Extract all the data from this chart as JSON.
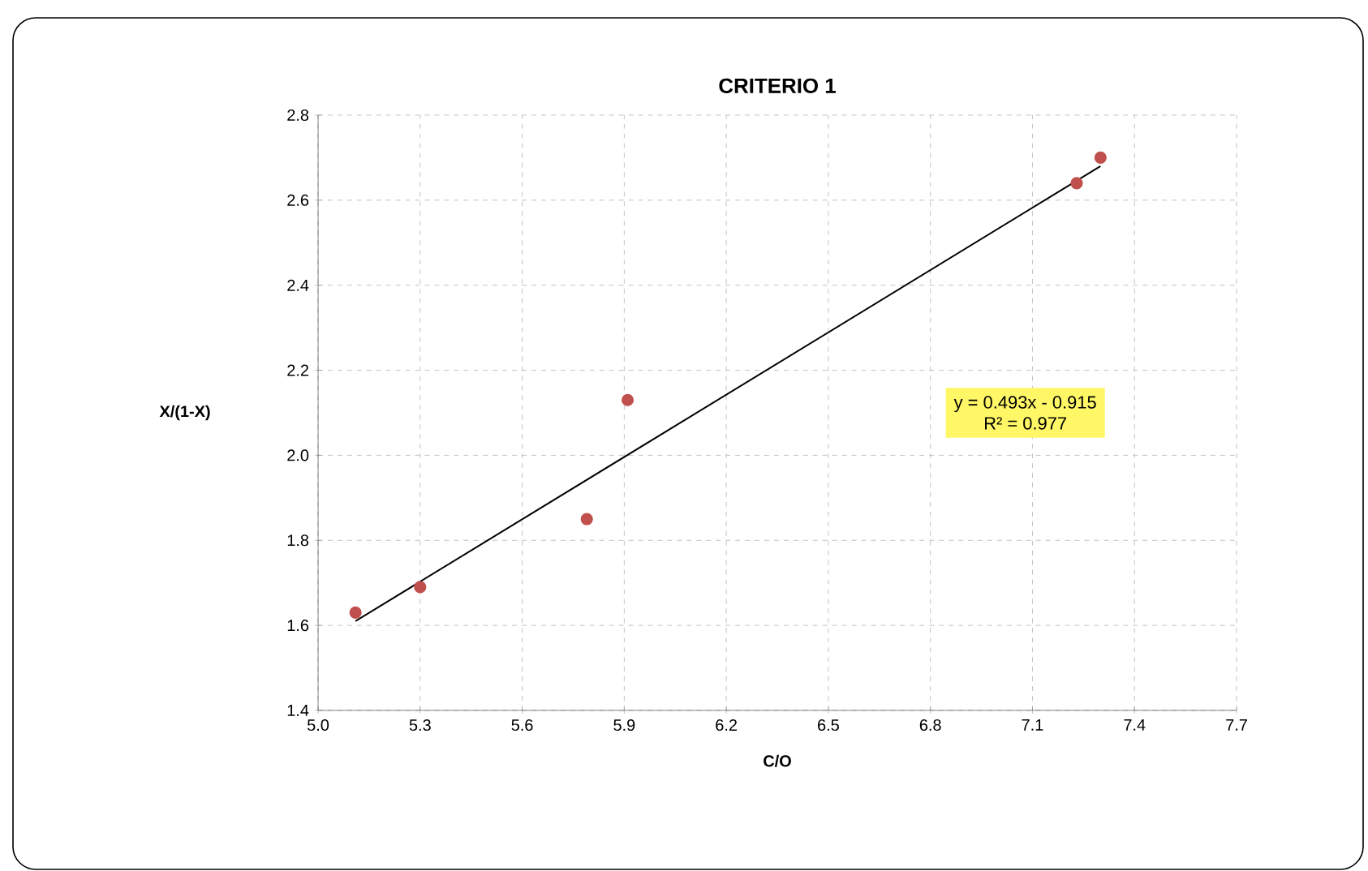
{
  "chart_data": {
    "type": "scatter",
    "title": "CRITERIO 1",
    "xlabel": "C/O",
    "ylabel": "X/(1-X)",
    "series": [
      {
        "color": "#c0504d",
        "marker": "circle",
        "x": [
          5.11,
          5.3,
          5.79,
          5.91,
          7.23,
          7.3
        ],
        "values": [
          1.63,
          1.69,
          1.85,
          2.13,
          2.64,
          2.7
        ]
      },
      {
        "type": "line",
        "color": "#000000",
        "marker": "none",
        "x": [
          5.11,
          7.3
        ],
        "values": [
          1.61,
          2.68
        ]
      }
    ],
    "annotations": [
      "y = 0.493x - 0.915",
      "R² = 0.977"
    ],
    "xlim": [
      5.0,
      7.7
    ],
    "xticks": [
      {
        "value": 5.0,
        "label": "5.0"
      },
      5.3,
      5.6,
      5.9,
      6.2,
      6.5,
      6.8,
      7.1,
      7.4,
      7.7
    ],
    "ylim": [
      1.4,
      2.8
    ],
    "yticks": [
      1.4,
      1.6,
      1.8,
      {
        "value": 2.0,
        "label": "2.0"
      },
      2.2,
      2.4,
      2.6,
      2.8
    ],
    "grid": true
  }
}
